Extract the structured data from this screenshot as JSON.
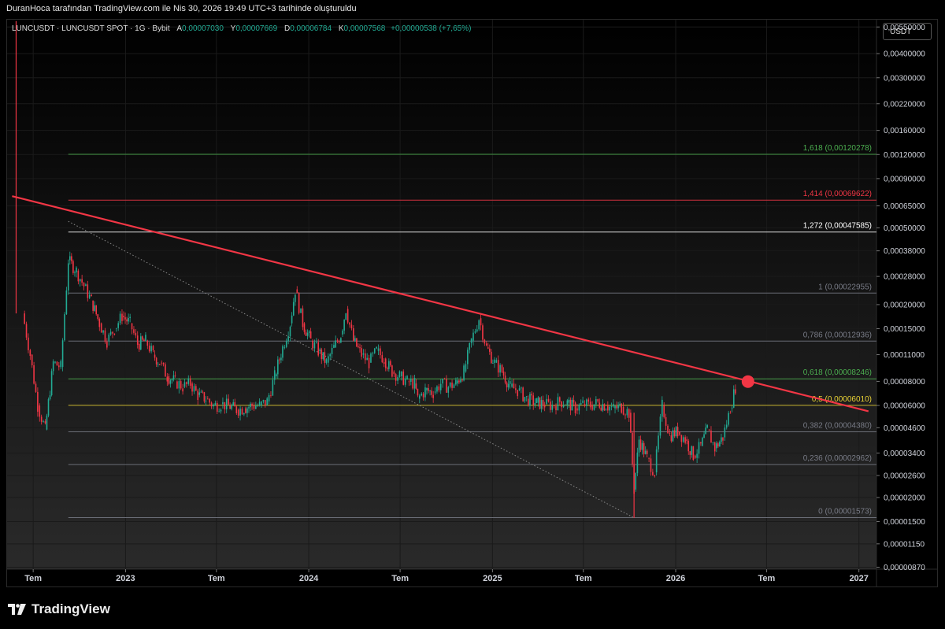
{
  "header": {
    "credit": "DuranHoca tarafından TradingView.com ile Nis 30, 2026 19:49 UTC+3 tarihinde oluşturuldu"
  },
  "legend": {
    "symbol": "LUNCUSDT · LUNCUSDT SPOT · 1G · Bybit",
    "open_label": "A",
    "open": "0,00007030",
    "high_label": "Y",
    "high": "0,00007669",
    "low_label": "D",
    "low": "0,00006784",
    "close_label": "K",
    "close": "0,00007568",
    "change": "+0,00000538 (+7,65%)"
  },
  "unit": "USDT",
  "brand": {
    "name": "TradingView"
  },
  "colors": {
    "up": "#22ab94",
    "down": "#f23645",
    "trendline": "#f23645",
    "background": "#000000"
  },
  "chart_data": {
    "type": "line",
    "y_scale": "log",
    "ylim": [
      8.5e-06,
      0.006
    ],
    "y_ticks": [
      0.0055,
      0.004,
      0.003,
      0.0022,
      0.0016,
      0.0012,
      0.0009,
      0.00065,
      0.0005,
      0.00038,
      0.00028,
      0.0002,
      0.00015,
      0.00011,
      8e-05,
      6e-05,
      4.6e-05,
      3.4e-05,
      2.6e-05,
      2e-05,
      1.5e-05,
      1.15e-05,
      8.7e-06
    ],
    "y_tick_labels": [
      "0,00550000",
      "0,00400000",
      "0,00300000",
      "0,00220000",
      "0,00160000",
      "0,00120000",
      "0,00090000",
      "0,00065000",
      "0,00050000",
      "0,00038000",
      "0,00028000",
      "0,00020000",
      "0,00015000",
      "0,00011000",
      "0,00008000",
      "0,00006000",
      "0,00004600",
      "0,00003400",
      "0,00002600",
      "0,00002000",
      "0,00001500",
      "0,00001150",
      "0,00000870"
    ],
    "x_ticks": [
      "2022-07-01",
      "2023-01-01",
      "2023-07-01",
      "2024-01-01",
      "2024-07-01",
      "2025-01-01",
      "2025-07-01",
      "2026-01-01",
      "2026-07-01",
      "2027-01-01"
    ],
    "x_tick_labels": [
      "Tem",
      "2023",
      "Tem",
      "2024",
      "Tem",
      "2025",
      "Tem",
      "2026",
      "Tem",
      "2027"
    ],
    "fib_levels": [
      {
        "ratio": "1,618",
        "price": 0.00120278,
        "label": "1,618 (0,00120278)",
        "color": "#4caf50"
      },
      {
        "ratio": "1,414",
        "price": 0.00069622,
        "label": "1,414 (0,00069622)",
        "color": "#f23645"
      },
      {
        "ratio": "1,272",
        "price": 0.00047585,
        "label": "1,272 (0,00047585)",
        "color": "#ffffff"
      },
      {
        "ratio": "1",
        "price": 0.00022955,
        "label": "1 (0,00022955)",
        "color": "#787b86"
      },
      {
        "ratio": "0,786",
        "price": 0.00012936,
        "label": "0,786 (0,00012936)",
        "color": "#787b86"
      },
      {
        "ratio": "0,618",
        "price": 8.246e-05,
        "label": "0,618 (0,00008246)",
        "color": "#4caf50"
      },
      {
        "ratio": "0,5",
        "price": 6.01e-05,
        "label": "0,5 (0,00006010)",
        "color": "#e8d135"
      },
      {
        "ratio": "0,382",
        "price": 4.38e-05,
        "label": "0,382 (0,00004380)",
        "color": "#787b86"
      },
      {
        "ratio": "0,236",
        "price": 2.962e-05,
        "label": "0,236 (0,00002962)",
        "color": "#787b86"
      },
      {
        "ratio": "0",
        "price": 1.573e-05,
        "label": "0 (0,00001573)",
        "color": "#787b86"
      }
    ],
    "trendline": {
      "start": [
        "2022-05-20",
        0.00073
      ],
      "end": [
        "2027-01-20",
        5.6e-05
      ],
      "color": "#f23645"
    },
    "fib_anchor_line": {
      "start": [
        "2022-09-09",
        0.00054
      ],
      "end": [
        "2025-10-10",
        1.57e-05
      ]
    },
    "marker": {
      "date": "2026-05-25",
      "price": 7.98e-05,
      "color": "#f23645"
    },
    "series": [
      {
        "x": [
          "2022-06-10",
          "2022-06-25",
          "2022-07-10",
          "2022-07-25",
          "2022-08-10",
          "2022-08-25",
          "2022-09-09",
          "2022-09-25",
          "2022-10-10",
          "2022-10-25",
          "2022-11-10",
          "2022-11-25",
          "2022-12-10",
          "2022-12-25",
          "2023-01-10",
          "2023-01-25",
          "2023-02-10",
          "2023-02-25",
          "2023-03-10",
          "2023-03-25",
          "2023-04-10",
          "2023-04-25",
          "2023-05-10",
          "2023-05-25",
          "2023-06-10",
          "2023-06-25",
          "2023-07-10",
          "2023-07-25",
          "2023-08-10",
          "2023-08-25",
          "2023-09-10",
          "2023-09-25",
          "2023-10-10",
          "2023-10-25",
          "2023-11-10",
          "2023-11-25",
          "2023-12-05",
          "2023-12-20",
          "2024-01-05",
          "2024-01-20",
          "2024-02-05",
          "2024-02-20",
          "2024-03-05",
          "2024-03-15",
          "2024-03-30",
          "2024-04-15",
          "2024-04-30",
          "2024-05-15",
          "2024-05-30",
          "2024-06-15",
          "2024-06-30",
          "2024-07-15",
          "2024-07-30",
          "2024-08-05",
          "2024-08-20",
          "2024-09-05",
          "2024-09-20",
          "2024-10-05",
          "2024-10-20",
          "2024-11-05",
          "2024-11-20",
          "2024-12-05",
          "2024-12-20",
          "2025-01-05",
          "2025-01-20",
          "2025-02-05",
          "2025-02-20",
          "2025-03-10",
          "2025-03-30",
          "2025-04-15",
          "2025-04-30",
          "2025-05-15",
          "2025-05-30",
          "2025-06-15",
          "2025-06-30",
          "2025-07-15",
          "2025-07-30",
          "2025-08-15",
          "2025-08-30",
          "2025-09-15",
          "2025-09-30",
          "2025-10-10",
          "2025-10-20",
          "2025-11-05",
          "2025-11-20",
          "2025-12-05",
          "2025-12-20",
          "2026-01-05",
          "2026-01-20",
          "2026-02-05",
          "2026-02-20",
          "2026-03-05",
          "2026-03-20",
          "2026-04-05",
          "2026-04-20",
          "2026-04-30"
        ],
        "values": [
          0.00018,
          0.00011,
          6e-05,
          4.5e-05,
          0.0001,
          9.5e-05,
          0.00034,
          0.0003,
          0.00025,
          0.00021,
          0.00016,
          0.00013,
          0.00015,
          0.000175,
          0.00016,
          0.000125,
          0.00013,
          0.00011,
          0.0001,
          8.5e-05,
          8e-05,
          7.5e-05,
          7.8e-05,
          6.8e-05,
          6.5e-05,
          6e-05,
          6.1e-05,
          6e-05,
          5.7e-05,
          5.8e-05,
          6e-05,
          6e-05,
          6.3e-05,
          8.5e-05,
          0.00012,
          0.00016,
          0.00024,
          0.00016,
          0.00013,
          0.000115,
          0.0001,
          0.00012,
          0.00014,
          0.00019,
          0.00013,
          0.00011,
          0.0001,
          0.000115,
          0.000105,
          9e-05,
          8.5e-05,
          8e-05,
          7.8e-05,
          6.5e-05,
          7.2e-05,
          7e-05,
          7.8e-05,
          7.5e-05,
          7.8e-05,
          9e-05,
          0.00013,
          0.00017,
          0.00012,
          0.0001,
          9e-05,
          7.5e-05,
          7.2e-05,
          6.5e-05,
          6.2e-05,
          6.1e-05,
          6e-05,
          6.3e-05,
          6.2e-05,
          5.8e-05,
          6.1e-05,
          6e-05,
          6.2e-05,
          6e-05,
          5.8e-05,
          5.9e-05,
          5.5e-05,
          2.2e-05,
          4e-05,
          3.2e-05,
          2.7e-05,
          6e-05,
          4.2e-05,
          4.4e-05,
          4e-05,
          3.3e-05,
          3.7e-05,
          4.5e-05,
          3.6e-05,
          4.1e-05,
          5.8e-05,
          7.5e-05
        ]
      }
    ]
  }
}
